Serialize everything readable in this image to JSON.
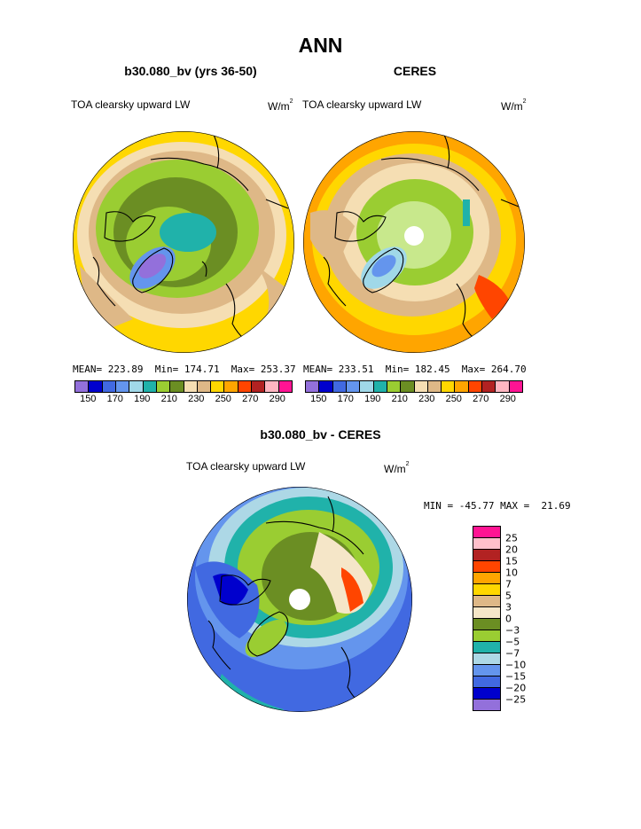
{
  "title": "ANN",
  "panels": [
    {
      "title": "b30.080_bv (yrs 36-50)",
      "variable": "TOA clearsky upward LW",
      "units_base": "W/m",
      "units_sup": "2",
      "stats": "MEAN= 223.89  Min= 174.71  Max= 253.37",
      "colorbar_ticks": [
        "150",
        "170",
        "190",
        "210",
        "230",
        "250",
        "270",
        "290"
      ]
    },
    {
      "title": "CERES",
      "variable": "TOA clearsky upward LW",
      "units_base": "W/m",
      "units_sup": "2",
      "stats": "MEAN= 233.51  Min= 182.45  Max= 264.70",
      "colorbar_ticks": [
        "150",
        "170",
        "190",
        "210",
        "230",
        "250",
        "270",
        "290"
      ]
    }
  ],
  "diff_panel": {
    "title": "b30.080_bv - CERES",
    "variable": "TOA clearsky upward LW",
    "units_base": "W/m",
    "units_sup": "2",
    "stats": "MIN = -45.77 MAX =  21.69",
    "colorbar_labels": [
      "25",
      "20",
      "15",
      "10",
      "7",
      "5",
      "3",
      "0",
      "−3",
      "−5",
      "−7",
      "−10",
      "−15",
      "−20",
      "−25"
    ]
  },
  "colors": {
    "abs_scale": [
      "#9370db",
      "#0000cd",
      "#4169e1",
      "#6495ed",
      "#a0d8e8",
      "#20b2aa",
      "#9acd32",
      "#6b8e23",
      "#f5deb3",
      "#deb887",
      "#ffd700",
      "#ffa500",
      "#ff4500",
      "#b22222",
      "#ffb6c1",
      "#ff1493"
    ],
    "diff_scale": [
      "#ff1493",
      "#ffc0cb",
      "#b22222",
      "#ff4500",
      "#ffa500",
      "#ffd700",
      "#deb887",
      "#f5e6c8",
      "#6b8e23",
      "#9acd32",
      "#20b2aa",
      "#add8e6",
      "#6495ed",
      "#4169e1",
      "#0000cd",
      "#9370db"
    ]
  }
}
